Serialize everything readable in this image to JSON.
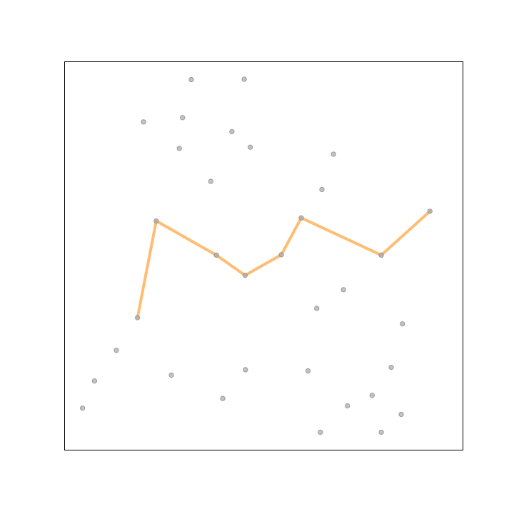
{
  "chart_data": {
    "type": "scatter",
    "title": "",
    "xlabel": "",
    "ylabel": "",
    "xlim": [
      0,
      1
    ],
    "ylim": [
      0,
      1
    ],
    "grid": false,
    "axes_ticks": false,
    "colors": {
      "points": "#a8a8a8",
      "line": "#ffb15c"
    },
    "series": [
      {
        "kind": "scatter",
        "points": [
          [
            0.318,
            0.954
          ],
          [
            0.451,
            0.955
          ],
          [
            0.198,
            0.845
          ],
          [
            0.296,
            0.856
          ],
          [
            0.42,
            0.82
          ],
          [
            0.288,
            0.777
          ],
          [
            0.466,
            0.78
          ],
          [
            0.675,
            0.762
          ],
          [
            0.367,
            0.692
          ],
          [
            0.646,
            0.671
          ],
          [
            0.7,
            0.413
          ],
          [
            0.633,
            0.365
          ],
          [
            0.848,
            0.325
          ],
          [
            0.13,
            0.257
          ],
          [
            0.075,
            0.178
          ],
          [
            0.268,
            0.193
          ],
          [
            0.454,
            0.207
          ],
          [
            0.611,
            0.204
          ],
          [
            0.82,
            0.213
          ],
          [
            0.397,
            0.133
          ],
          [
            0.772,
            0.141
          ],
          [
            0.71,
            0.114
          ],
          [
            0.845,
            0.092
          ],
          [
            0.045,
            0.108
          ],
          [
            0.642,
            0.046
          ],
          [
            0.795,
            0.046
          ]
        ]
      },
      {
        "kind": "line",
        "points": [
          [
            0.183,
            0.341
          ],
          [
            0.23,
            0.59
          ],
          [
            0.381,
            0.502
          ],
          [
            0.453,
            0.45
          ],
          [
            0.544,
            0.503
          ],
          [
            0.594,
            0.598
          ],
          [
            0.795,
            0.502
          ],
          [
            0.917,
            0.615
          ]
        ]
      }
    ]
  }
}
